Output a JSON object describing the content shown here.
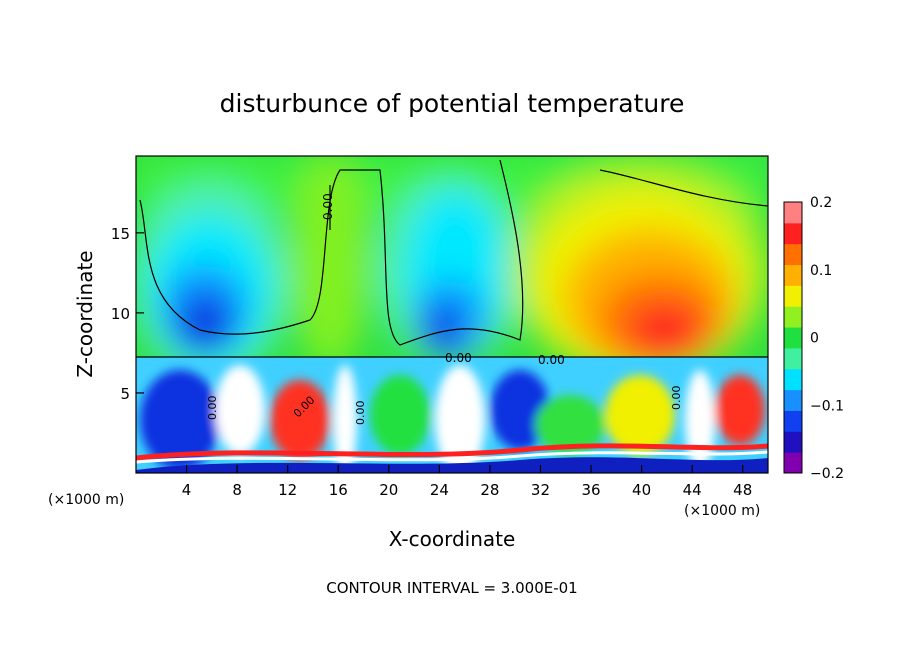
{
  "chart_data": {
    "type": "heatmap",
    "title": "disturbunce of potential temperature",
    "xlabel": "X-coordinate",
    "ylabel": "Z-coordinate",
    "x_unit": "(×1000 m)",
    "xlim": [
      0,
      50
    ],
    "ylim": [
      0,
      19.8
    ],
    "x_ticks": [
      4,
      8,
      12,
      16,
      20,
      24,
      28,
      32,
      36,
      40,
      44,
      48
    ],
    "y_ticks": [
      5,
      10,
      15
    ],
    "colorbar": {
      "min": -0.2,
      "max": 0.2,
      "tick_values": [
        0.2,
        0.1,
        0,
        -0.1,
        -0.2
      ],
      "tick_labels": [
        "0.2",
        "0.1",
        "0",
        "−0.1",
        "−0.2"
      ],
      "colors": [
        "#8000b0",
        "#2010c0",
        "#1040f0",
        "#1890ff",
        "#00e0ff",
        "#40f0a0",
        "#20e040",
        "#90f020",
        "#f0f000",
        "#ffb000",
        "#ff7000",
        "#ff2020",
        "#ff8080"
      ]
    },
    "contour_labels": [
      "0.00",
      "0.00",
      "0.00",
      "0.00",
      "0.00",
      "0.00",
      "0.00"
    ],
    "footer": "CONTOUR INTERVAL = 3.000E-01"
  }
}
